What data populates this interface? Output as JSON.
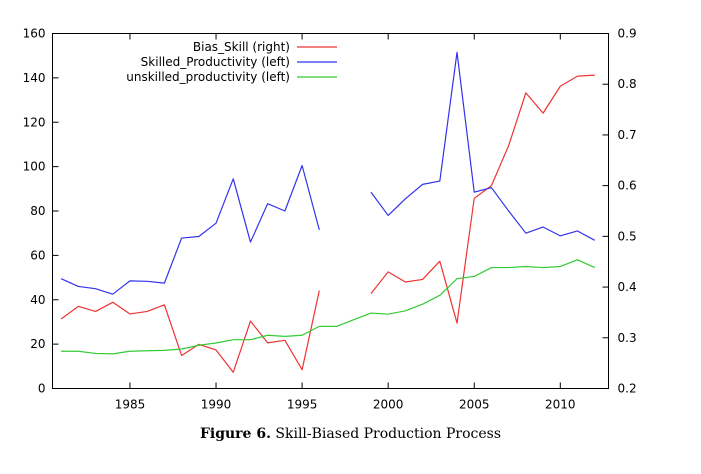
{
  "caption": {
    "label": "Figure 6.",
    "text": "Skill-Biased Production Process"
  },
  "chart_data": {
    "type": "line",
    "title": "",
    "xlabel": "",
    "ylabel_left": "",
    "ylabel_right": "",
    "xlim": [
      1980.5,
      2012.8
    ],
    "ylim_left": [
      0,
      160
    ],
    "ylim_right": [
      0.2,
      0.9
    ],
    "xticks": [
      1985,
      1990,
      1995,
      2000,
      2005,
      2010
    ],
    "yticks_left": [
      0,
      20,
      40,
      60,
      80,
      100,
      120,
      140,
      160
    ],
    "yticks_right": [
      0.2,
      0.3,
      0.4,
      0.5,
      0.6,
      0.7,
      0.8,
      0.9
    ],
    "grid": false,
    "legend_position": "top-left",
    "series": [
      {
        "name": "Bias_Skill (right)",
        "axis": "right",
        "color": "#ee3333",
        "points": [
          [
            1981,
            0.337
          ],
          [
            1982,
            0.362
          ],
          [
            1983,
            0.352
          ],
          [
            1984,
            0.37
          ],
          [
            1985,
            0.347
          ],
          [
            1986,
            0.352
          ],
          [
            1987,
            0.365
          ],
          [
            1988,
            0.265
          ],
          [
            1989,
            0.287
          ],
          [
            1990,
            0.276
          ],
          [
            1991,
            0.232
          ],
          [
            1992,
            0.333
          ],
          [
            1993,
            0.29
          ],
          [
            1994,
            0.295
          ],
          [
            1995,
            0.237
          ],
          [
            1996,
            0.393
          ],
          [
            1999,
            0.387
          ],
          [
            2000,
            0.43
          ],
          [
            2001,
            0.41
          ],
          [
            2002,
            0.415
          ],
          [
            2003,
            0.451
          ],
          [
            2004,
            0.329
          ],
          [
            2005,
            0.575
          ],
          [
            2006,
            0.6
          ],
          [
            2007,
            0.679
          ],
          [
            2008,
            0.783
          ],
          [
            2009,
            0.743
          ],
          [
            2010,
            0.796
          ],
          [
            2011,
            0.816
          ],
          [
            2012,
            0.818
          ]
        ]
      },
      {
        "name": "Skilled_Productivity (left)",
        "axis": "left",
        "color": "#3333ee",
        "points": [
          [
            1981,
            49.5
          ],
          [
            1982,
            46.0
          ],
          [
            1983,
            45.0
          ],
          [
            1984,
            42.5
          ],
          [
            1985,
            48.5
          ],
          [
            1986,
            48.3
          ],
          [
            1987,
            47.5
          ],
          [
            1988,
            67.8
          ],
          [
            1989,
            68.5
          ],
          [
            1990,
            74.5
          ],
          [
            1991,
            94.5
          ],
          [
            1992,
            66.0
          ],
          [
            1993,
            83.3
          ],
          [
            1994,
            80.0
          ],
          [
            1995,
            100.5
          ],
          [
            1996,
            71.5
          ],
          [
            1999,
            88.5
          ],
          [
            2000,
            78.0
          ],
          [
            2001,
            85.5
          ],
          [
            2002,
            92.0
          ],
          [
            2003,
            93.5
          ],
          [
            2004,
            151.5
          ],
          [
            2005,
            88.5
          ],
          [
            2006,
            90.5
          ],
          [
            2007,
            80.0
          ],
          [
            2008,
            70.0
          ],
          [
            2009,
            72.8
          ],
          [
            2010,
            68.8
          ],
          [
            2011,
            71.0
          ],
          [
            2012,
            66.8
          ]
        ]
      },
      {
        "name": "unskilled_productivity (left)",
        "axis": "left",
        "color": "#33cc33",
        "points": [
          [
            1981,
            16.8
          ],
          [
            1982,
            16.8
          ],
          [
            1983,
            15.8
          ],
          [
            1984,
            15.6
          ],
          [
            1985,
            16.8
          ],
          [
            1986,
            17.0
          ],
          [
            1987,
            17.2
          ],
          [
            1988,
            17.8
          ],
          [
            1989,
            19.5
          ],
          [
            1990,
            20.5
          ],
          [
            1991,
            22.0
          ],
          [
            1992,
            22.0
          ],
          [
            1993,
            24.0
          ],
          [
            1994,
            23.5
          ],
          [
            1995,
            24.0
          ],
          [
            1996,
            28.0
          ],
          [
            1997,
            28.0
          ],
          [
            1998,
            31.0
          ],
          [
            1999,
            34.0
          ],
          [
            2000,
            33.5
          ],
          [
            2001,
            35.0
          ],
          [
            2002,
            38.0
          ],
          [
            2003,
            42.0
          ],
          [
            2004,
            49.5
          ],
          [
            2005,
            50.5
          ],
          [
            2006,
            54.5
          ],
          [
            2007,
            54.5
          ],
          [
            2008,
            55.0
          ],
          [
            2009,
            54.5
          ],
          [
            2010,
            55.0
          ],
          [
            2011,
            58.0
          ],
          [
            2012,
            54.5
          ]
        ]
      }
    ]
  }
}
